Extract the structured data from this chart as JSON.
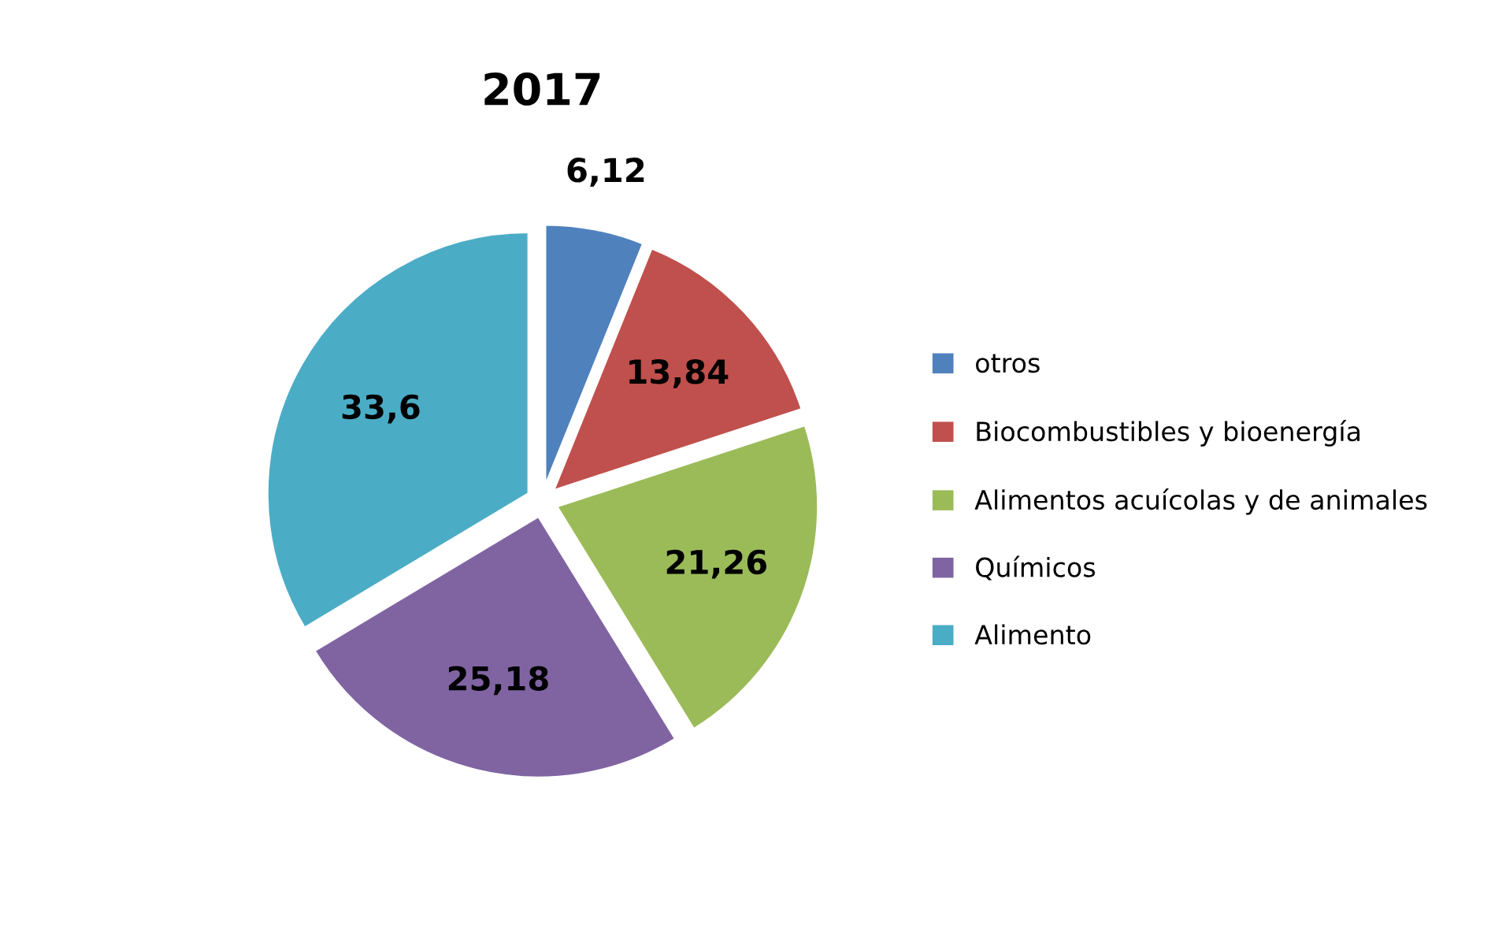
{
  "chart_data": {
    "type": "pie",
    "title": "2017",
    "categories": [
      "otros",
      "Biocombustibles y bioenergía",
      "Alimentos acuícolas y de animales",
      "Químicos",
      "Alimento"
    ],
    "values": [
      6.12,
      13.84,
      21.26,
      25.18,
      33.6
    ],
    "value_labels": [
      "6,12",
      "13,84",
      "21,26",
      "25,18",
      "33,6"
    ],
    "colors": [
      "#4f81bd",
      "#c0504d",
      "#9bbb59",
      "#8064a2",
      "#4bacc6"
    ],
    "legend": "right"
  }
}
